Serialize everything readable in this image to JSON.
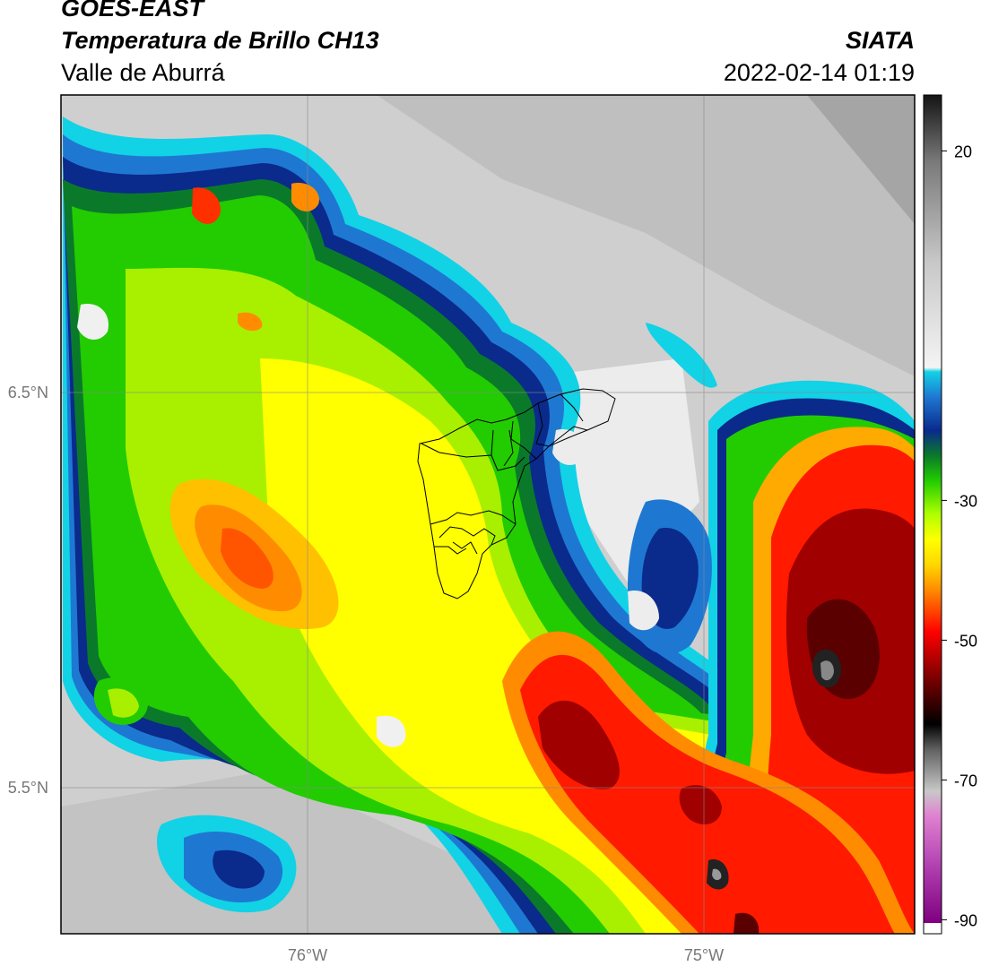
{
  "header": {
    "agency": "GOES-EAST",
    "product": "Temperatura de Brillo CH13",
    "region": "Valle de Aburrá",
    "organization": "SIATA",
    "datetime": "2022-02-14 01:19"
  },
  "map": {
    "lon_ticks": [
      {
        "value": -76,
        "label": "76°W"
      },
      {
        "value": -75,
        "label": "75°W"
      }
    ],
    "lat_ticks": [
      {
        "value": 6.5,
        "label": "6.5°N"
      },
      {
        "value": 5.5,
        "label": "5.5°N"
      }
    ],
    "gridlines": true
  },
  "colorbar": {
    "range": [
      -92,
      28
    ],
    "ticks": [
      {
        "value": 20,
        "label": "20"
      },
      {
        "value": -30,
        "label": "-30"
      },
      {
        "value": -50,
        "label": "-50"
      },
      {
        "value": -70,
        "label": "-70"
      },
      {
        "value": -90,
        "label": "-90"
      }
    ]
  },
  "colors": {
    "cold_black": "#1a1a1a",
    "dark_red": "#6b0000",
    "red": "#e00000",
    "orange": "#ff8c00",
    "yellow": "#ffe600",
    "green": "#22cc00",
    "dark_green": "#0a7a2a",
    "navy": "#0a2a8c",
    "blue": "#1e78d2",
    "cyan": "#12d2e6",
    "warm_gray": "#c9c9c9"
  }
}
